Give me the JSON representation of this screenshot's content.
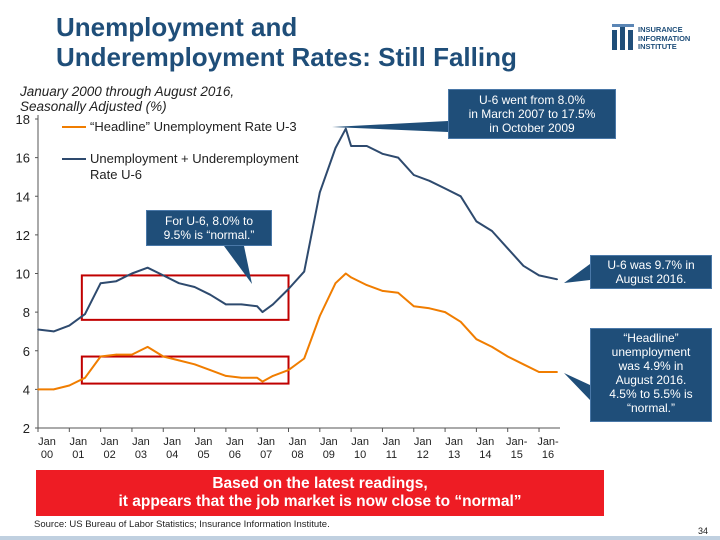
{
  "title": {
    "line1": "Unemployment and",
    "line2": "Underemployment Rates: Still Falling"
  },
  "logo": {
    "line1": "INSURANCE",
    "line2": "INFORMATION",
    "line3": "INSTITUTE"
  },
  "subtitle": {
    "line1": "January 2000 through August 2016,",
    "line2": "Seasonally Adjusted (%)"
  },
  "callouts": {
    "u6_range": [
      "U-6 went from 8.0%",
      "in March 2007 to 17.5%",
      "in October 2009"
    ],
    "u6_normal": [
      "For U-6, 8.0% to",
      "9.5% is “normal.”"
    ],
    "u6_latest": [
      "U-6 was 9.7% in",
      "August 2016."
    ],
    "u3_latest": [
      "“Headline”",
      "unemployment",
      "was 4.9% in",
      "August 2016.",
      "4.5% to 5.5% is",
      "“normal.”"
    ]
  },
  "banner": {
    "line1": "Based on the latest readings,",
    "line2": "it appears that the job market is now close to “normal”"
  },
  "source": "Source: US Bureau of Labor Statistics; Insurance Information Institute.",
  "page_number": "34",
  "colors": {
    "title": "#1f4e79",
    "u3_series": "#f07d00",
    "u6_series": "#2e4a6e",
    "highlight_box": "#c00000",
    "callout_bg": "#1f4e79",
    "banner_bg": "#ee1c24"
  },
  "chart_data": {
    "type": "line",
    "ylim": [
      2,
      18
    ],
    "yticks": [
      2,
      4,
      6,
      8,
      10,
      12,
      14,
      16,
      18
    ],
    "xlim": [
      2000.0,
      2016.67
    ],
    "xticks": [
      {
        "x": 2000,
        "line1": "Jan",
        "line2": "00"
      },
      {
        "x": 2001,
        "line1": "Jan",
        "line2": "01"
      },
      {
        "x": 2002,
        "line1": "Jan",
        "line2": "02"
      },
      {
        "x": 2003,
        "line1": "Jan",
        "line2": "03"
      },
      {
        "x": 2004,
        "line1": "Jan",
        "line2": "04"
      },
      {
        "x": 2005,
        "line1": "Jan",
        "line2": "05"
      },
      {
        "x": 2006,
        "line1": "Jan",
        "line2": "06"
      },
      {
        "x": 2007,
        "line1": "Jan",
        "line2": "07"
      },
      {
        "x": 2008,
        "line1": "Jan",
        "line2": "08"
      },
      {
        "x": 2009,
        "line1": "Jan",
        "line2": "09"
      },
      {
        "x": 2010,
        "line1": "Jan",
        "line2": "10"
      },
      {
        "x": 2011,
        "line1": "Jan",
        "line2": "11"
      },
      {
        "x": 2012,
        "line1": "Jan",
        "line2": "12"
      },
      {
        "x": 2013,
        "line1": "Jan",
        "line2": "13"
      },
      {
        "x": 2014,
        "line1": "Jan",
        "line2": "14"
      },
      {
        "x": 2015,
        "line1": "Jan-",
        "line2": "15"
      },
      {
        "x": 2016,
        "line1": "Jan-",
        "line2": "16"
      }
    ],
    "series": [
      {
        "name": "“Headline” Unemployment Rate U-3",
        "color": "#f07d00",
        "x": [
          2000.0,
          2000.5,
          2001.0,
          2001.5,
          2002.0,
          2002.5,
          2003.0,
          2003.5,
          2004.0,
          2004.5,
          2005.0,
          2005.5,
          2006.0,
          2006.5,
          2007.0,
          2007.17,
          2007.5,
          2008.0,
          2008.5,
          2009.0,
          2009.5,
          2009.83,
          2010.0,
          2010.5,
          2011.0,
          2011.5,
          2012.0,
          2012.5,
          2013.0,
          2013.5,
          2014.0,
          2014.5,
          2015.0,
          2015.5,
          2016.0,
          2016.58
        ],
        "y": [
          4.0,
          4.0,
          4.2,
          4.6,
          5.7,
          5.8,
          5.8,
          6.2,
          5.7,
          5.5,
          5.3,
          5.0,
          4.7,
          4.6,
          4.6,
          4.4,
          4.7,
          5.0,
          5.6,
          7.8,
          9.5,
          10.0,
          9.8,
          9.4,
          9.1,
          9.0,
          8.3,
          8.2,
          8.0,
          7.5,
          6.6,
          6.2,
          5.7,
          5.3,
          4.9,
          4.9
        ]
      },
      {
        "name": "Unemployment + Underemployment Rate U-6",
        "color": "#2e4a6e",
        "x": [
          2000.0,
          2000.5,
          2001.0,
          2001.5,
          2002.0,
          2002.5,
          2003.0,
          2003.5,
          2004.0,
          2004.5,
          2005.0,
          2005.5,
          2006.0,
          2006.5,
          2007.0,
          2007.17,
          2007.5,
          2008.0,
          2008.5,
          2009.0,
          2009.5,
          2009.83,
          2010.0,
          2010.5,
          2011.0,
          2011.5,
          2012.0,
          2012.5,
          2013.0,
          2013.5,
          2014.0,
          2014.5,
          2015.0,
          2015.5,
          2016.0,
          2016.58
        ],
        "y": [
          7.1,
          7.0,
          7.3,
          7.9,
          9.5,
          9.6,
          10.0,
          10.3,
          9.9,
          9.5,
          9.3,
          8.9,
          8.4,
          8.4,
          8.3,
          8.0,
          8.4,
          9.2,
          10.1,
          14.2,
          16.5,
          17.5,
          16.6,
          16.6,
          16.2,
          16.0,
          15.1,
          14.8,
          14.4,
          14.0,
          12.7,
          12.2,
          11.3,
          10.4,
          9.9,
          9.7
        ]
      }
    ],
    "highlight_ranges": [
      {
        "x": [
          2001.4,
          2008.0
        ],
        "y": [
          7.6,
          9.9
        ]
      },
      {
        "x": [
          2001.4,
          2008.0
        ],
        "y": [
          4.3,
          5.7
        ]
      }
    ]
  }
}
